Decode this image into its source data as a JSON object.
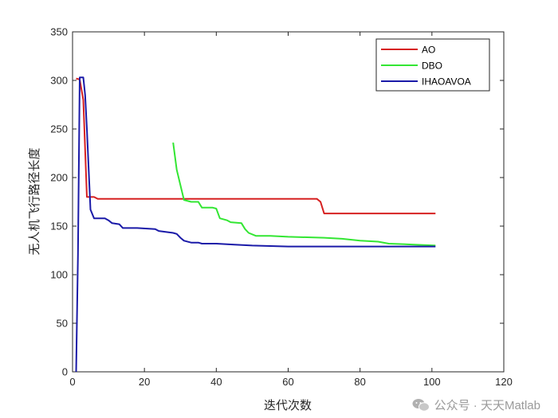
{
  "chart_data": {
    "type": "line",
    "title": "",
    "xlabel": "迭代次数",
    "ylabel": "无人机飞行路径长度",
    "xlim": [
      0,
      120
    ],
    "ylim": [
      0,
      350
    ],
    "xticks": [
      "0",
      "20",
      "40",
      "60",
      "80",
      "100",
      "120"
    ],
    "yticks": [
      "0",
      "50",
      "100",
      "150",
      "200",
      "250",
      "300",
      "350"
    ],
    "grid": false,
    "legend_position": "top-right",
    "series": [
      {
        "name": "AO",
        "color": "#d62020",
        "points": [
          [
            1,
            302
          ],
          [
            2,
            301
          ],
          [
            3,
            280
          ],
          [
            4,
            180
          ],
          [
            6,
            180
          ],
          [
            7,
            178
          ],
          [
            10,
            178
          ],
          [
            30,
            178
          ],
          [
            50,
            178
          ],
          [
            68,
            178
          ],
          [
            69,
            175
          ],
          [
            70,
            163
          ],
          [
            80,
            163
          ],
          [
            101,
            163
          ]
        ]
      },
      {
        "name": "DBO",
        "color": "#33e633",
        "points": [
          [
            28,
            236
          ],
          [
            29,
            208
          ],
          [
            31,
            177
          ],
          [
            33,
            175
          ],
          [
            35,
            175
          ],
          [
            36,
            169
          ],
          [
            39,
            169
          ],
          [
            40,
            168
          ],
          [
            41,
            158
          ],
          [
            43,
            156
          ],
          [
            44,
            154
          ],
          [
            47,
            153
          ],
          [
            48,
            147
          ],
          [
            49,
            143
          ],
          [
            51,
            140
          ],
          [
            55,
            140
          ],
          [
            60,
            139
          ],
          [
            70,
            138
          ],
          [
            75,
            137
          ],
          [
            80,
            135
          ],
          [
            85,
            134
          ],
          [
            88,
            132
          ],
          [
            95,
            131
          ],
          [
            101,
            130
          ]
        ]
      },
      {
        "name": "IHAOAVOA",
        "color": "#1a1aa8",
        "points": [
          [
            1,
            0
          ],
          [
            1.5,
            120
          ],
          [
            2,
            303
          ],
          [
            3,
            303
          ],
          [
            3.5,
            285
          ],
          [
            4,
            250
          ],
          [
            5,
            167
          ],
          [
            6,
            158
          ],
          [
            9,
            158
          ],
          [
            10,
            156
          ],
          [
            11,
            153
          ],
          [
            13,
            152
          ],
          [
            14,
            148
          ],
          [
            18,
            148
          ],
          [
            23,
            147
          ],
          [
            24,
            145
          ],
          [
            28,
            143
          ],
          [
            29,
            142
          ],
          [
            30,
            138
          ],
          [
            31,
            135
          ],
          [
            33,
            133
          ],
          [
            35,
            133
          ],
          [
            36,
            132
          ],
          [
            40,
            132
          ],
          [
            45,
            131
          ],
          [
            50,
            130
          ],
          [
            60,
            129
          ],
          [
            70,
            129
          ],
          [
            80,
            129
          ],
          [
            90,
            129
          ],
          [
            101,
            129
          ]
        ]
      }
    ]
  },
  "watermark": {
    "text": "公众号 · 天天Matlab",
    "icon": "wechat-icon"
  }
}
